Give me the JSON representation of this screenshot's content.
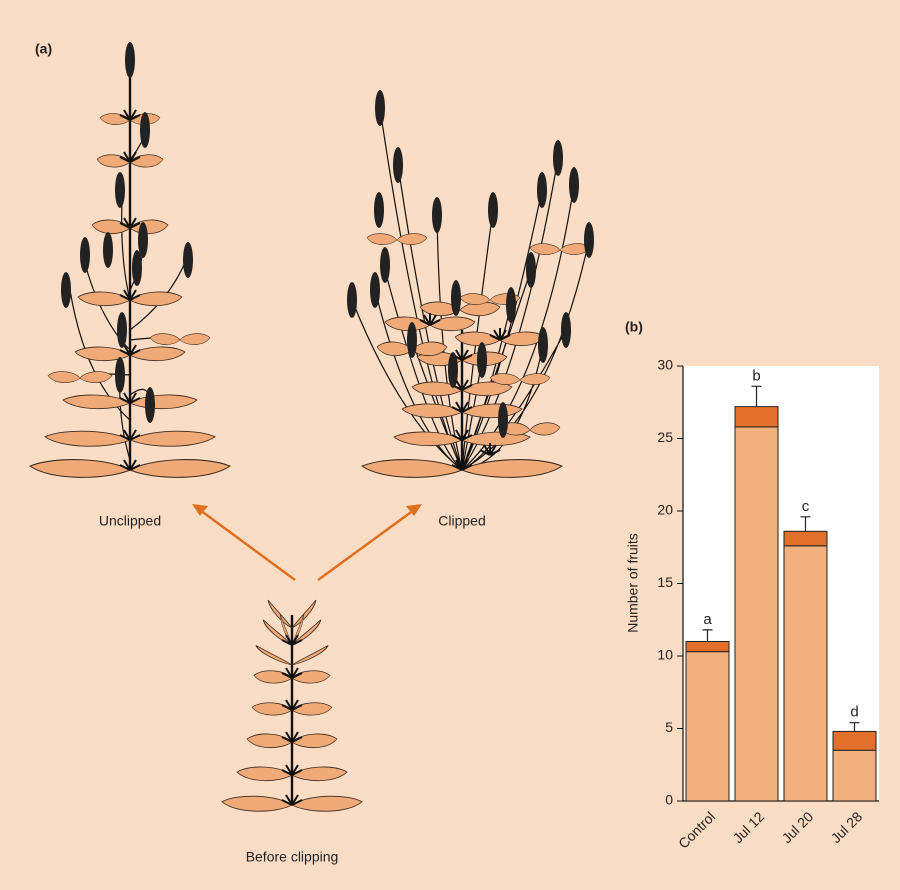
{
  "panel_a": {
    "label": "(a)",
    "unclipped": "Unclipped",
    "clipped": "Clipped",
    "before": "Before clipping"
  },
  "chart_data": {
    "type": "bar",
    "stacked": true,
    "panel_label": "(b)",
    "ylabel": "Number of fruits",
    "categories": [
      "Control",
      "Jul 12",
      "Jul 20",
      "Jul 28"
    ],
    "series": [
      {
        "color": "#f2b07f",
        "values": [
          10.3,
          25.8,
          17.6,
          3.5
        ]
      },
      {
        "color": "#e2702a",
        "values": [
          0.7,
          1.4,
          1.0,
          1.3
        ],
        "errors": [
          0.8,
          1.4,
          1.0,
          0.6
        ]
      }
    ],
    "annotations": [
      "a",
      "b",
      "c",
      "d"
    ],
    "ylim": [
      0,
      30
    ],
    "yticks": [
      0,
      5,
      10,
      15,
      20,
      25,
      30
    ]
  }
}
